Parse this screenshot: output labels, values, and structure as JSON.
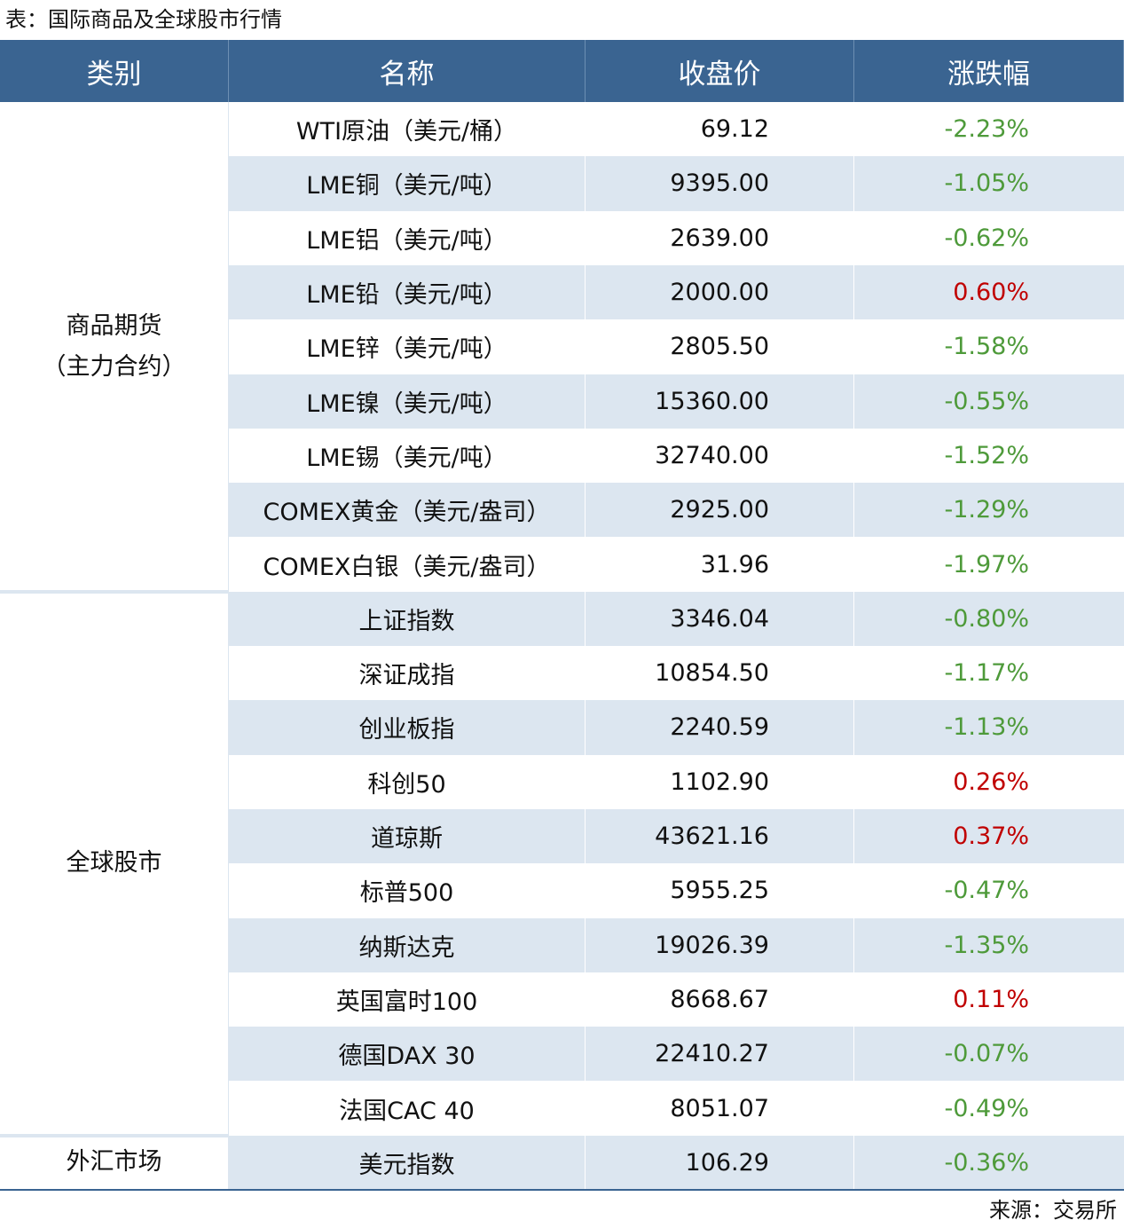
{
  "title": "表：国际商品及全球股市行情",
  "table": {
    "columns": [
      "类别",
      "名称",
      "收盘价",
      "涨跌幅"
    ],
    "groups": [
      {
        "category": [
          "商品期货",
          "（主力合约）"
        ],
        "rows": [
          [
            "WTI原油（美元/桶）",
            "69.12",
            "-2.23%"
          ],
          [
            "LME铜（美元/吨）",
            "9395.00",
            "-1.05%"
          ],
          [
            "LME铝（美元/吨）",
            "2639.00",
            "-0.62%"
          ],
          [
            "LME铅（美元/吨）",
            "2000.00",
            "0.60%"
          ],
          [
            "LME锌（美元/吨）",
            "2805.50",
            "-1.58%"
          ],
          [
            "LME镍（美元/吨）",
            "15360.00",
            "-0.55%"
          ],
          [
            "LME锡（美元/吨）",
            "32740.00",
            "-1.52%"
          ],
          [
            "COMEX黄金（美元/盎司）",
            "2925.00",
            "-1.29%"
          ],
          [
            "COMEX白银（美元/盎司）",
            "31.96",
            "-1.97%"
          ]
        ]
      },
      {
        "category": [
          "全球股市"
        ],
        "rows": [
          [
            "上证指数",
            "3346.04",
            "-0.80%"
          ],
          [
            "深证成指",
            "10854.50",
            "-1.17%"
          ],
          [
            "创业板指",
            "2240.59",
            "-1.13%"
          ],
          [
            "科创50",
            "1102.90",
            "0.26%"
          ],
          [
            "道琼斯",
            "43621.16",
            "0.37%"
          ],
          [
            "标普500",
            "5955.25",
            "-0.47%"
          ],
          [
            "纳斯达克",
            "19026.39",
            "-1.35%"
          ],
          [
            "英国富时100",
            "8668.67",
            "0.11%"
          ],
          [
            "德国DAX 30",
            "22410.27",
            "-0.07%"
          ],
          [
            "法国CAC 40",
            "8051.07",
            "-0.49%"
          ]
        ]
      },
      {
        "category": [
          "外汇市场"
        ],
        "rows": [
          [
            "美元指数",
            "106.29",
            "-0.36%"
          ]
        ]
      }
    ]
  },
  "source": "来源：交易所"
}
